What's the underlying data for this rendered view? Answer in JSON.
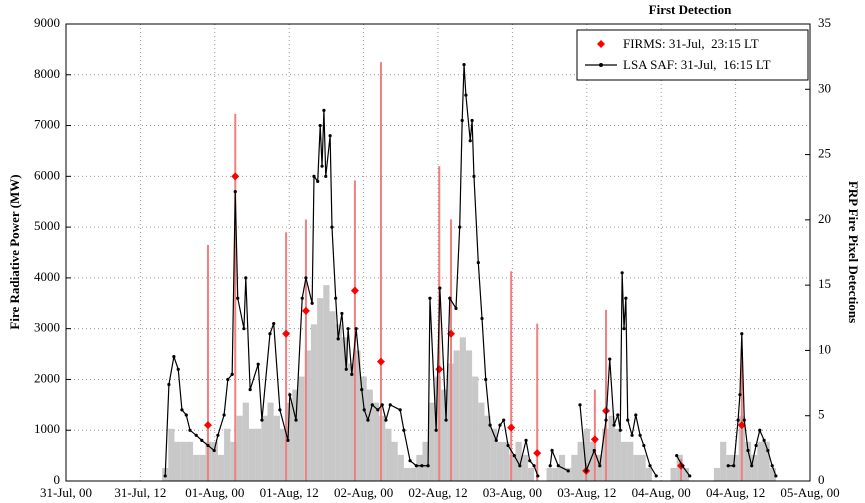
{
  "chart_data": {
    "type": "line",
    "title": "First Detection",
    "ylabel": "Fire Radiative Power (MW)",
    "y2label": "FRP Fire Pixel Detections",
    "xlim": [
      0,
      120
    ],
    "xticks": [
      {
        "value": 0,
        "label": "31-Jul, 00"
      },
      {
        "value": 12,
        "label": "31-Jul, 12"
      },
      {
        "value": 24,
        "label": "01-Aug, 00"
      },
      {
        "value": 36,
        "label": "01-Aug, 12"
      },
      {
        "value": 48,
        "label": "02-Aug, 00"
      },
      {
        "value": 60,
        "label": "02-Aug, 12"
      },
      {
        "value": 72,
        "label": "03-Aug, 00"
      },
      {
        "value": 84,
        "label": "03-Aug, 12"
      },
      {
        "value": 96,
        "label": "04-Aug, 00"
      },
      {
        "value": 108,
        "label": "04-Aug, 12"
      },
      {
        "value": 120,
        "label": "05-Aug, 00"
      }
    ],
    "ylim": [
      0,
      9000
    ],
    "yticks": [
      0,
      1000,
      2000,
      3000,
      4000,
      5000,
      6000,
      7000,
      8000,
      9000
    ],
    "y2lim": [
      0,
      35
    ],
    "y2ticks": [
      0,
      5,
      10,
      15,
      20,
      25,
      30,
      35
    ],
    "grid": true,
    "legend": "upper right",
    "series": [
      {
        "type": "bar",
        "axis": "y2",
        "color": "#c8c8c8",
        "x": [
          16,
          17,
          18,
          19,
          20,
          21,
          22,
          23,
          24,
          25,
          26,
          27,
          28,
          29,
          30,
          31,
          32,
          33,
          34,
          35,
          36,
          37,
          38,
          39,
          40,
          41,
          42,
          43,
          44,
          45,
          46,
          47,
          48,
          49,
          50,
          51,
          52,
          53,
          54,
          55,
          56,
          57,
          58,
          59,
          60,
          61,
          62,
          63,
          64,
          65,
          66,
          67,
          68,
          69,
          70,
          71,
          72,
          73,
          74,
          75,
          76,
          77,
          78,
          79,
          80,
          81,
          82,
          83,
          84,
          85,
          86,
          87,
          88,
          89,
          90,
          91,
          92,
          93,
          94,
          95,
          96,
          97,
          98,
          99,
          100,
          101,
          102,
          103,
          104,
          105,
          106,
          107,
          108,
          109,
          110,
          111,
          112,
          113,
          114
        ],
        "values": [
          1,
          4,
          3,
          3,
          3,
          2,
          2,
          3,
          3,
          2,
          4,
          3,
          5,
          6,
          4,
          4,
          5,
          6,
          5,
          4,
          6,
          7,
          8,
          10,
          12,
          14,
          15,
          13,
          12,
          11,
          9,
          10,
          8,
          7,
          6,
          5,
          4,
          3,
          2,
          1,
          1,
          2,
          3,
          6,
          8,
          7,
          9,
          10,
          11,
          10,
          8,
          6,
          5,
          4,
          3,
          3,
          2,
          3,
          2,
          1,
          0,
          0,
          1,
          1,
          2,
          1,
          2,
          3,
          4,
          3,
          2,
          4,
          5,
          4,
          3,
          3,
          2,
          2,
          1,
          0,
          0,
          0,
          1,
          2,
          1,
          0,
          0,
          0,
          0,
          1,
          3,
          2,
          2,
          5,
          3,
          2,
          3,
          3,
          1
        ]
      },
      {
        "type": "stem",
        "color": "#f08080",
        "x": [
          22.9,
          27.3,
          35.5,
          38.7,
          46.6,
          50.8,
          60.2,
          62.1,
          71.8,
          76.0,
          83.9,
          85.3,
          87.1,
          99.2,
          109.0
        ],
        "values": [
          4650,
          7230,
          4900,
          5150,
          5920,
          8250,
          6200,
          5150,
          4130,
          3100,
          350,
          1800,
          3370,
          430,
          2600
        ]
      },
      {
        "type": "scatter",
        "name": "FIRMS: 31-Jul,  23:15 LT",
        "color": "#ff0000",
        "x": [
          22.9,
          27.3,
          35.5,
          38.7,
          46.6,
          50.8,
          60.2,
          62.1,
          71.8,
          76.0,
          83.9,
          85.3,
          87.1,
          99.2,
          109.0
        ],
        "values": [
          1100,
          6000,
          2900,
          3350,
          3750,
          2350,
          2200,
          2900,
          1050,
          550,
          200,
          820,
          1380,
          300,
          1100
        ]
      },
      {
        "type": "line",
        "name": "LSA SAF: 31-Jul,  16:15 LT",
        "color": "#000000",
        "x": [
          16.0,
          16.6,
          17.4,
          18.1,
          18.7,
          19.4,
          20.0,
          21.0,
          21.9,
          22.9,
          23.9,
          24.5,
          25.5,
          26.1,
          26.8,
          27.3,
          27.7,
          28.7,
          29.0,
          29.7,
          31.0,
          31.6,
          32.9,
          33.5,
          34.5,
          35.8,
          36.1,
          37.1,
          38.1,
          38.7,
          39.7,
          40.0,
          40.6,
          41.0,
          41.3,
          41.6,
          41.9,
          42.6,
          42.9,
          43.5,
          43.9,
          44.5,
          45.2,
          45.5,
          46.1,
          46.8,
          47.7,
          48.1,
          48.7,
          49.4,
          50.3,
          51.0,
          51.6,
          52.3,
          53.9,
          54.5,
          55.5,
          56.5,
          57.4,
          58.4,
          58.7,
          59.7,
          60.3,
          61.3,
          61.9,
          62.9,
          63.5,
          63.9,
          64.2,
          64.5,
          65.2,
          65.5,
          65.8,
          66.5,
          67.1,
          67.7,
          68.4,
          69.4,
          70.0,
          70.6,
          71.3,
          72.3,
          73.2,
          74.2,
          74.8,
          75.5,
          76.1,
          77.0,
          78.1,
          78.4,
          79.4,
          81.0,
          82.0,
          82.9,
          83.9,
          85.2,
          86.1,
          87.1,
          87.7,
          88.4,
          89.0,
          89.4,
          89.7,
          90.0,
          90.3,
          90.6,
          91.3,
          91.9,
          92.6,
          93.2,
          94.2,
          95.2,
          97.0,
          98.5,
          99.4,
          100.6,
          104.0,
          106.8,
          107.7,
          108.4,
          108.7,
          109.0,
          109.4,
          110.0,
          110.6,
          111.3,
          111.9,
          112.6,
          113.2,
          113.9,
          114.5
        ],
        "values": [
          100,
          1900,
          2450,
          2200,
          1400,
          1300,
          1000,
          900,
          800,
          700,
          600,
          900,
          1300,
          2000,
          2100,
          5700,
          3600,
          3000,
          4000,
          1800,
          2300,
          1200,
          2900,
          3100,
          1400,
          800,
          1700,
          1200,
          3600,
          4000,
          3500,
          6000,
          5900,
          7000,
          6200,
          7300,
          6000,
          6800,
          5000,
          3600,
          2800,
          3300,
          2200,
          3000,
          2100,
          3000,
          1800,
          1400,
          1200,
          1500,
          1400,
          1500,
          1200,
          1500,
          1400,
          1000,
          400,
          300,
          300,
          300,
          3600,
          1000,
          3800,
          1200,
          3600,
          3400,
          5000,
          7100,
          8200,
          7600,
          6700,
          7100,
          6000,
          4300,
          3200,
          2000,
          1100,
          800,
          1100,
          1200,
          700,
          500,
          300,
          800,
          400,
          300,
          100,
          null,
          300,
          600,
          300,
          200,
          null,
          1500,
          200,
          600,
          300,
          1200,
          2400,
          1100,
          1300,
          1000,
          4100,
          3000,
          3600,
          1200,
          900,
          1300,
          900,
          700,
          300,
          100,
          null,
          500,
          300,
          100,
          null,
          300,
          300,
          1200,
          1700,
          2900,
          1200,
          600,
          300,
          700,
          1000,
          800,
          600,
          300,
          100
        ]
      }
    ]
  }
}
